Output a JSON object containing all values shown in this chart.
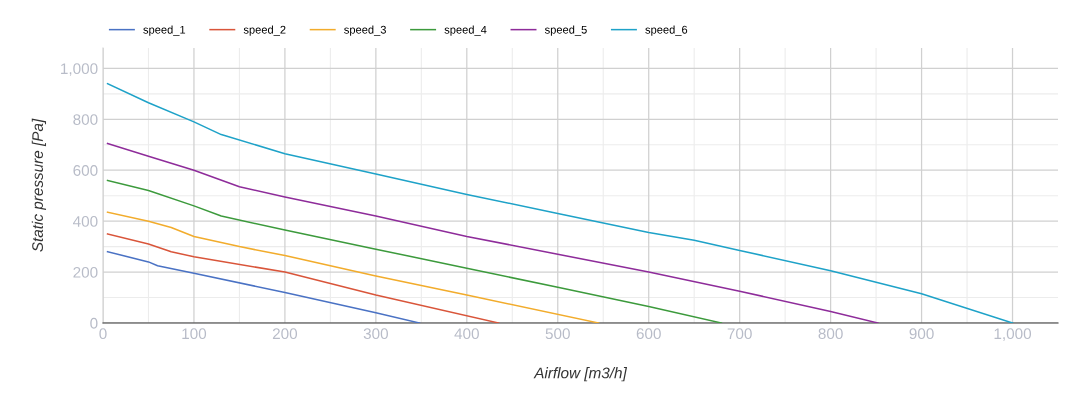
{
  "chart_data": {
    "type": "line",
    "xlabel": "Airflow [m3/h]",
    "ylabel": "Static pressure [Pa]",
    "xlim": [
      0,
      1050
    ],
    "ylim": [
      0,
      1080
    ],
    "xticks": [
      0,
      100,
      200,
      300,
      400,
      500,
      600,
      700,
      800,
      900,
      {
        "value": 1000,
        "label": "1,000"
      }
    ],
    "yticks": [
      0,
      200,
      400,
      600,
      800,
      {
        "value": 1000,
        "label": "1,000"
      }
    ],
    "grid": true,
    "legend": "top left",
    "marker": "none",
    "line_style": "solid",
    "series": [
      {
        "name": "speed_1",
        "color": "#4a72c4",
        "x": [
          5,
          50,
          60,
          100,
          200,
          300,
          348
        ],
        "values": [
          280,
          240,
          225,
          195,
          120,
          40,
          0
        ]
      },
      {
        "name": "speed_2",
        "color": "#d9553a",
        "x": [
          5,
          50,
          75,
          100,
          200,
          300,
          435
        ],
        "values": [
          350,
          310,
          280,
          260,
          200,
          110,
          0
        ]
      },
      {
        "name": "speed_3",
        "color": "#f2ac2c",
        "x": [
          5,
          50,
          75,
          100,
          150,
          200,
          300,
          400,
          545
        ],
        "values": [
          435,
          400,
          375,
          340,
          300,
          265,
          185,
          110,
          0
        ]
      },
      {
        "name": "speed_4",
        "color": "#3c9a3c",
        "x": [
          5,
          50,
          100,
          130,
          200,
          300,
          400,
          500,
          600,
          680
        ],
        "values": [
          560,
          520,
          460,
          420,
          365,
          290,
          215,
          140,
          65,
          0
        ]
      },
      {
        "name": "speed_5",
        "color": "#8e2c9a",
        "x": [
          5,
          50,
          100,
          150,
          200,
          300,
          400,
          500,
          600,
          700,
          800,
          852
        ],
        "values": [
          705,
          655,
          600,
          535,
          495,
          420,
          340,
          270,
          200,
          125,
          45,
          0
        ]
      },
      {
        "name": "speed_6",
        "color": "#1ea2c8",
        "x": [
          5,
          50,
          100,
          130,
          200,
          300,
          400,
          500,
          600,
          650,
          700,
          800,
          900,
          1000
        ],
        "values": [
          940,
          865,
          790,
          740,
          665,
          585,
          505,
          430,
          355,
          325,
          285,
          205,
          115,
          0
        ]
      }
    ]
  }
}
